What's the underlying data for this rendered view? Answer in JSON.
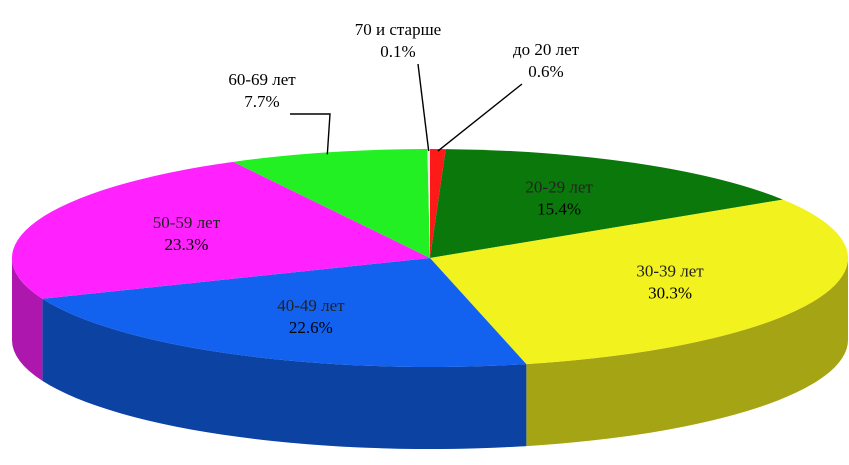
{
  "chart_data": {
    "type": "pie3d",
    "categories": [
      "до 20 лет",
      "20-29 лет",
      "30-39 лет",
      "40-49 лет",
      "50-59 лет",
      "60-69 лет",
      "70 и старше"
    ],
    "values": [
      0.6,
      15.4,
      30.3,
      22.6,
      23.3,
      7.7,
      0.1
    ],
    "value_labels": [
      "0.6%",
      "15.4%",
      "30.3%",
      "22.6%",
      "23.3%",
      "7.7%",
      "0.1%"
    ],
    "colors": [
      "#ff1a1a",
      "#0a780a",
      "#f2f21e",
      "#1262ef",
      "#ff22ff",
      "#22f022",
      "#e8e8e8"
    ]
  }
}
